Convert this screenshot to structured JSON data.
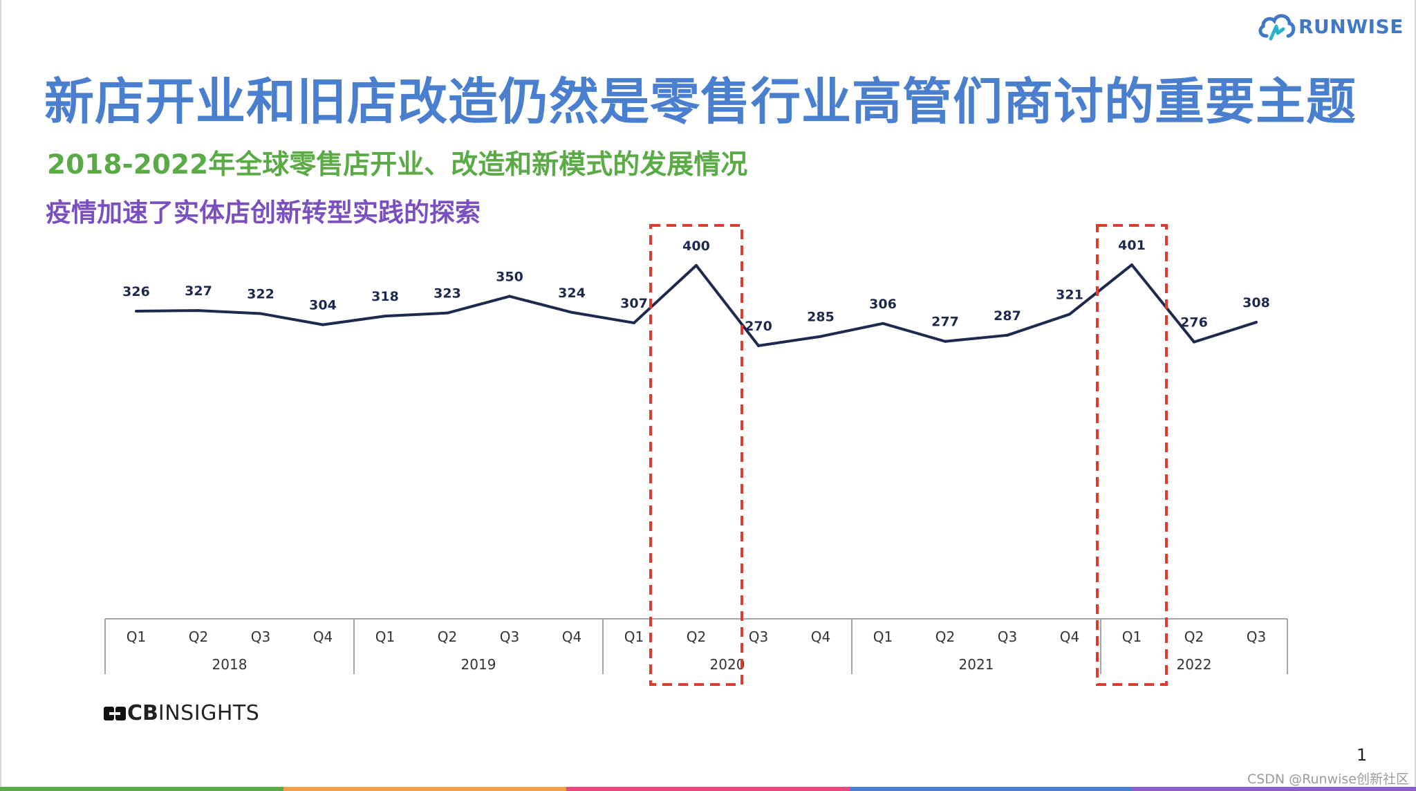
{
  "logo": {
    "text": "RUNWISE",
    "icon": "cloud-logo-icon"
  },
  "title": "新店开业和旧店改造仍然是零售行业高管们商讨的重要主题",
  "subtitle": "2018-2022年全球零售店开业、改造和新模式的发展情况",
  "subtitle2": "疫情加速了实体店创新转型实践的探索",
  "chart_data": {
    "type": "line",
    "title": "",
    "xlabel": "",
    "ylabel": "",
    "categories": [
      "Q1",
      "Q2",
      "Q3",
      "Q4",
      "Q1",
      "Q2",
      "Q3",
      "Q4",
      "Q1",
      "Q2",
      "Q3",
      "Q4",
      "Q1",
      "Q2",
      "Q3",
      "Q4",
      "Q1",
      "Q2",
      "Q3"
    ],
    "years": [
      {
        "label": "2018",
        "quarters": 4
      },
      {
        "label": "2019",
        "quarters": 4
      },
      {
        "label": "2020",
        "quarters": 4
      },
      {
        "label": "2021",
        "quarters": 4
      },
      {
        "label": "2022",
        "quarters": 3
      }
    ],
    "series": [
      {
        "values": [
          326,
          327,
          322,
          304,
          318,
          323,
          350,
          324,
          307,
          400,
          270,
          285,
          306,
          277,
          287,
          321,
          401,
          276,
          308
        ]
      }
    ],
    "highlighted": [
      "2020 Q2",
      "2022 Q1"
    ],
    "line_color": "#1e2a4d",
    "highlight_color": "#e03a2f",
    "grid": false,
    "legend": "none"
  },
  "source": {
    "brand_bold": "CB",
    "brand_rest": "INSIGHTS",
    "icon": "cb-logo-icon"
  },
  "page_number": "1",
  "watermark": "CSDN @Runwise创新社区",
  "bottom_bar_colors": [
    "#5aaa46",
    "#f0a04b",
    "#e84a7f",
    "#4a7fcf",
    "#8a5fc8"
  ]
}
